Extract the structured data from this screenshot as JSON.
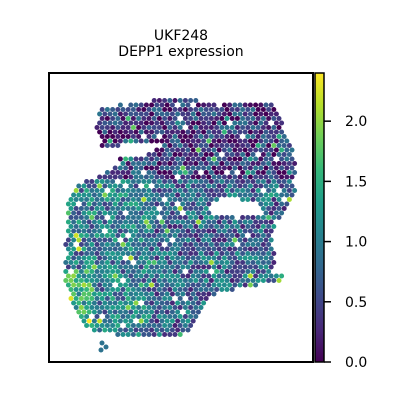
{
  "chart_data": {
    "type": "scatter",
    "title_line1": "UKF248",
    "title_line2": "DEPP1 expression",
    "xlabel": "",
    "ylabel": "",
    "grid": false,
    "legend": "colorbar-right",
    "colormap": "viridis",
    "color_range": [
      0.0,
      2.4
    ],
    "colorbar_ticks": [
      "0.0",
      "0.5",
      "1.0",
      "1.5",
      "2.0"
    ],
    "colorbar_tick_values": [
      0.0,
      0.5,
      1.0,
      1.5,
      2.0
    ],
    "region_mean_expression": {
      "upper_lobe": 0.35,
      "lower_left_lobe": 0.9,
      "lower_right_lobe": 0.7,
      "bottom_left_edge": 1.4
    }
  },
  "colors": {
    "viridis": [
      "#440154",
      "#482878",
      "#3e4989",
      "#31688e",
      "#26828e",
      "#1f9e89",
      "#35b779",
      "#6ece58",
      "#b5de2b",
      "#fde725"
    ],
    "frame": "#000000",
    "background": "#ffffff"
  }
}
